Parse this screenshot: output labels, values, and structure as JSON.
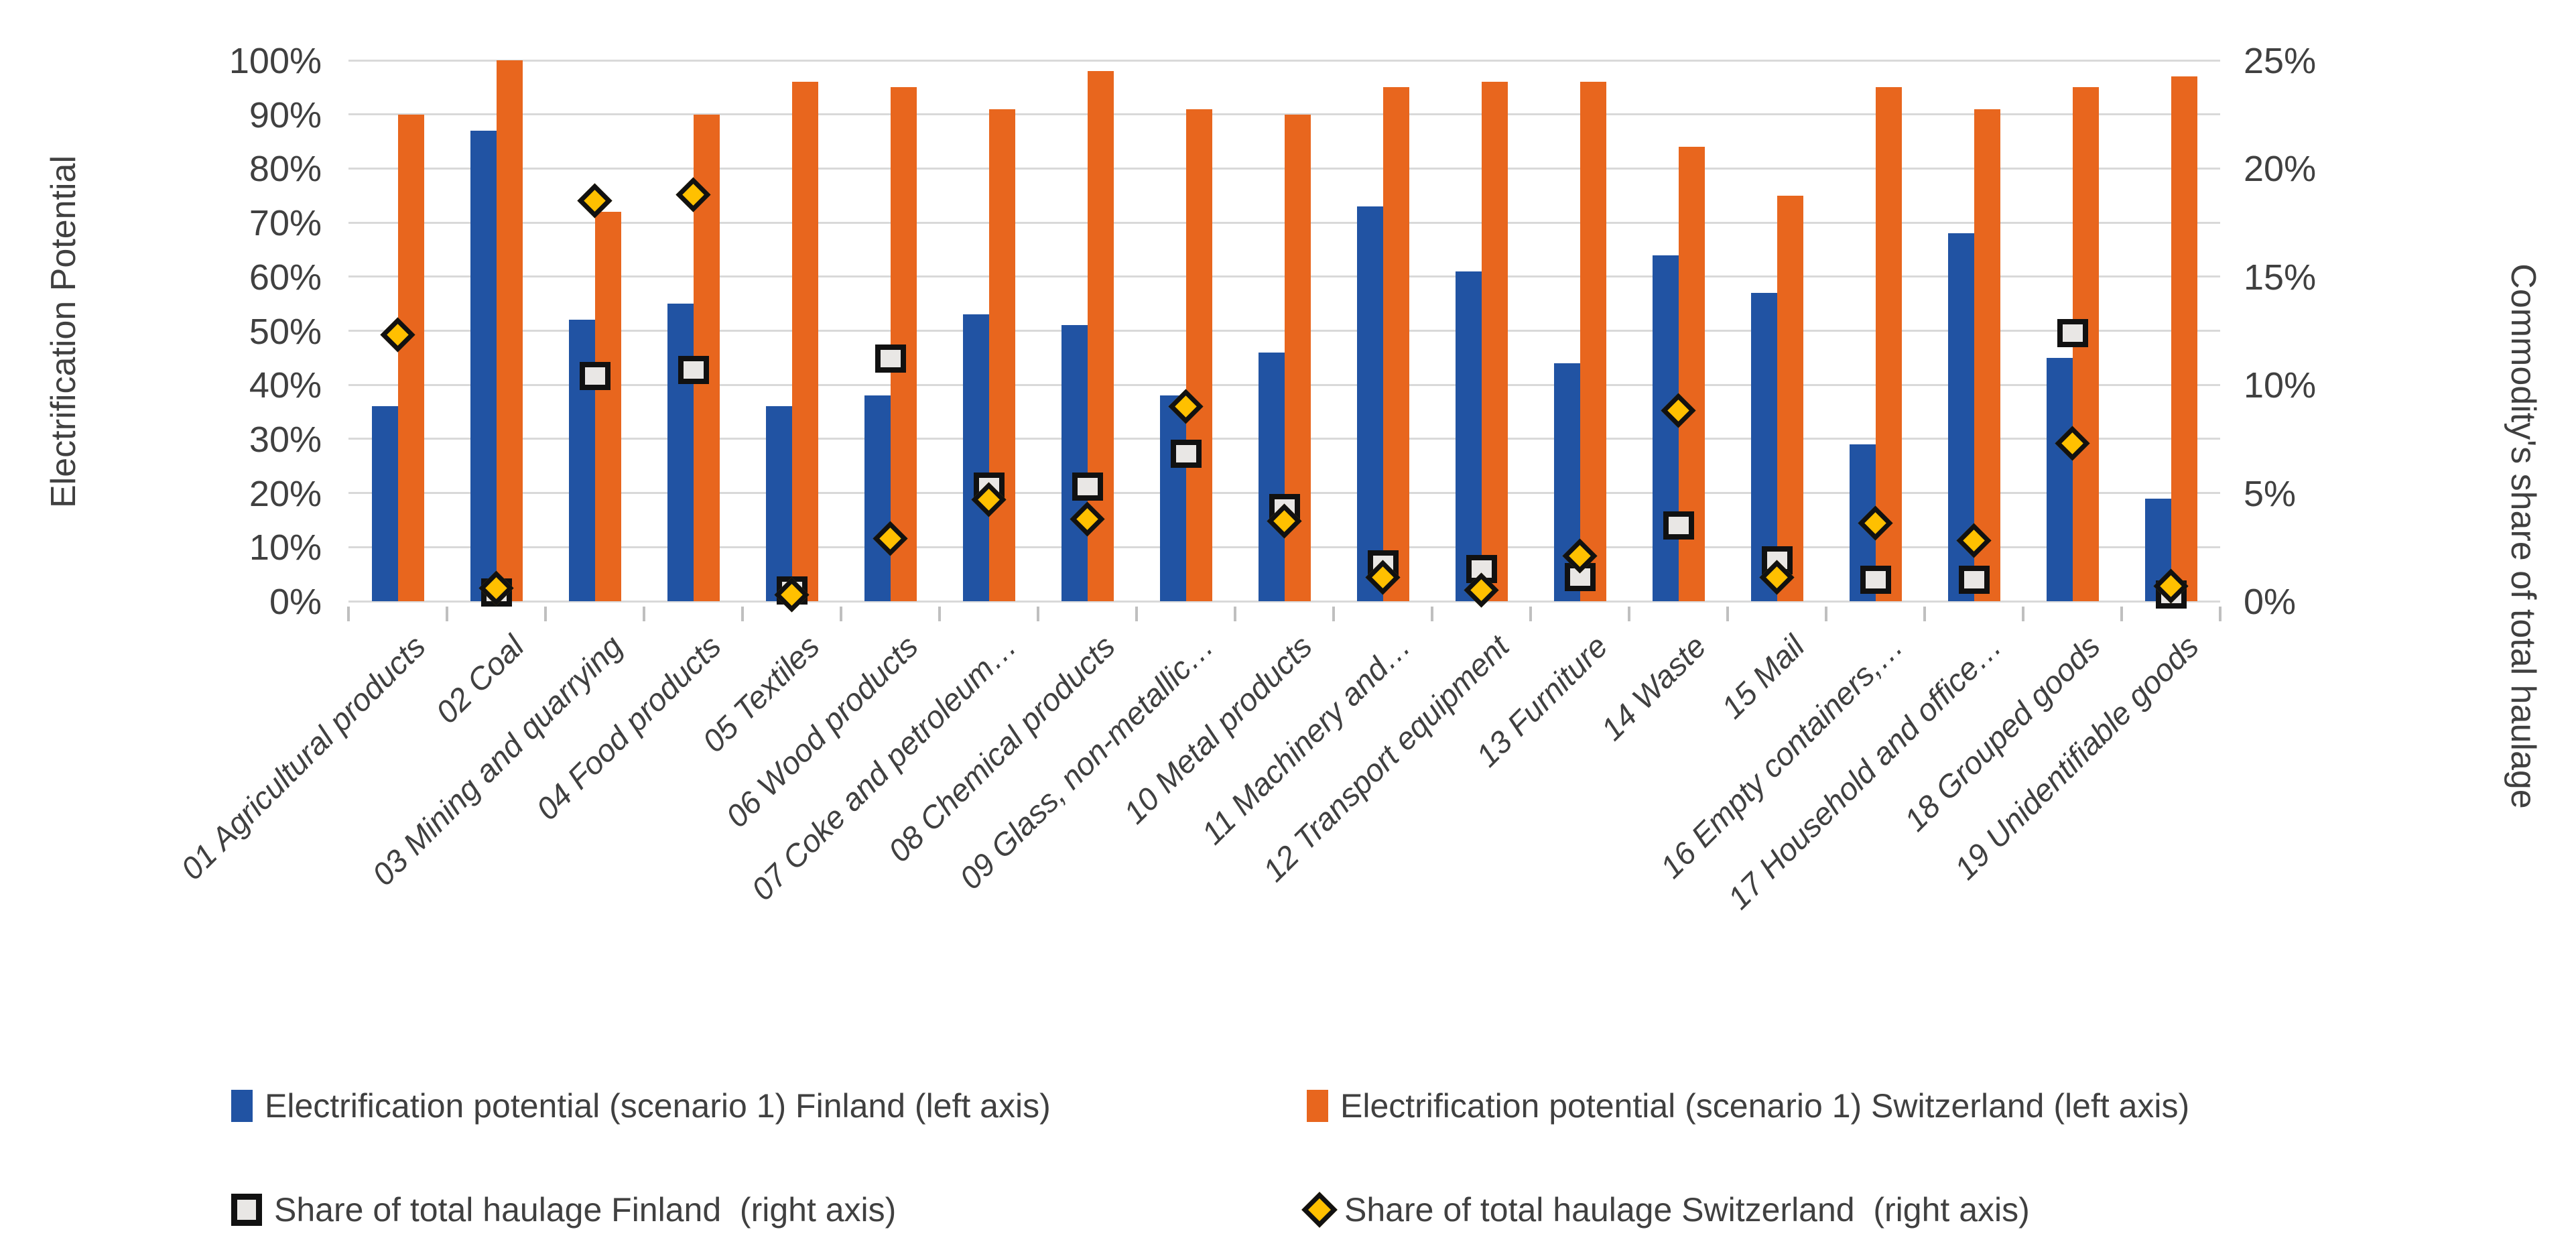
{
  "page": {
    "background": "#FFFFFF"
  },
  "chart_data": {
    "type": "bar",
    "subtype": "combo-bar-scatter-dual-axis",
    "title": "",
    "grid": true,
    "legend_position": "bottom",
    "categories": [
      "01 Agricultural products",
      "02 Coal",
      "03 Mining and quarrying",
      "04 Food products",
      "05 Textiles",
      "06 Wood products",
      "07 Coke and petroleum…",
      "08 Chemical products",
      "09 Glass, non-metallic…",
      "10 Metal products",
      "11 Machinery and…",
      "12 Transport equipment",
      "13 Furniture",
      "14 Waste",
      "15 Mail",
      "16 Empty containers,…",
      "17 Household and office…",
      "18 Grouped goods",
      "19 Unidentifiable goods"
    ],
    "left_axis": {
      "title": "Electrification Potential",
      "ticks": [
        "0%",
        "10%",
        "20%",
        "30%",
        "40%",
        "50%",
        "60%",
        "70%",
        "80%",
        "90%",
        "100%"
      ],
      "min": 0,
      "max": 100,
      "unit": "%"
    },
    "right_axis": {
      "title": "Commodity's share of total haulage",
      "ticks": [
        "0%",
        "5%",
        "10%",
        "15%",
        "20%",
        "25%"
      ],
      "min": 0,
      "max": 25,
      "unit": "%"
    },
    "series": [
      {
        "name": "Electrification potential (scenario 1) Finland (left axis)",
        "type": "bar",
        "axis": "left",
        "color": "#2153A3",
        "values": [
          36,
          87,
          52,
          55,
          36,
          38,
          53,
          51,
          38,
          46,
          73,
          61,
          44,
          64,
          57,
          29,
          68,
          45,
          19
        ]
      },
      {
        "name": "Electrification potential (scenario 1) Switzerland (left axis)",
        "type": "bar",
        "axis": "left",
        "color": "#E8661E",
        "values": [
          90,
          100,
          72,
          90,
          96,
          95,
          91,
          98,
          91,
          90,
          95,
          96,
          96,
          84,
          75,
          95,
          91,
          95,
          97
        ]
      },
      {
        "name": "Share of total haulage Finland  (right axis)",
        "type": "scatter",
        "marker": "square",
        "axis": "right",
        "fill": "#E9E7E5",
        "border": "#111111",
        "values": [
          null,
          0.4,
          10.4,
          10.7,
          0.5,
          11.2,
          5.3,
          5.3,
          6.8,
          4.3,
          1.7,
          1.5,
          1.1,
          3.5,
          1.9,
          1.0,
          1.0,
          12.4,
          0.3
        ]
      },
      {
        "name": "Share of total haulage Switzerland  (right axis)",
        "type": "scatter",
        "marker": "diamond",
        "axis": "right",
        "fill": "#FFC000",
        "border": "#111111",
        "values": [
          12.3,
          0.6,
          18.5,
          18.8,
          0.3,
          2.9,
          4.7,
          3.8,
          9.0,
          3.7,
          1.1,
          0.5,
          2.1,
          8.8,
          1.1,
          3.6,
          2.8,
          7.3,
          0.7
        ]
      }
    ],
    "legend": [
      {
        "marker": "bar",
        "color": "#2153A3",
        "label": "Electrification potential (scenario 1) Finland (left axis)"
      },
      {
        "marker": "bar",
        "color": "#E8661E",
        "label": "Electrification potential (scenario 1) Switzerland (left axis)"
      },
      {
        "marker": "square",
        "color": "#E9E7E5",
        "label": "Share of total haulage Finland  (right axis)"
      },
      {
        "marker": "diamond",
        "color": "#FFC000",
        "label": "Share of total haulage Switzerland  (right axis)"
      }
    ],
    "colors": {
      "finland_bar": "#2153A3",
      "switzerland_bar": "#E8661E",
      "finland_marker_fill": "#E9E7E5",
      "switzerland_marker_fill": "#FFC000",
      "marker_border": "#111111",
      "gridline": "#D9D9D9",
      "axis_text": "#404040"
    }
  }
}
